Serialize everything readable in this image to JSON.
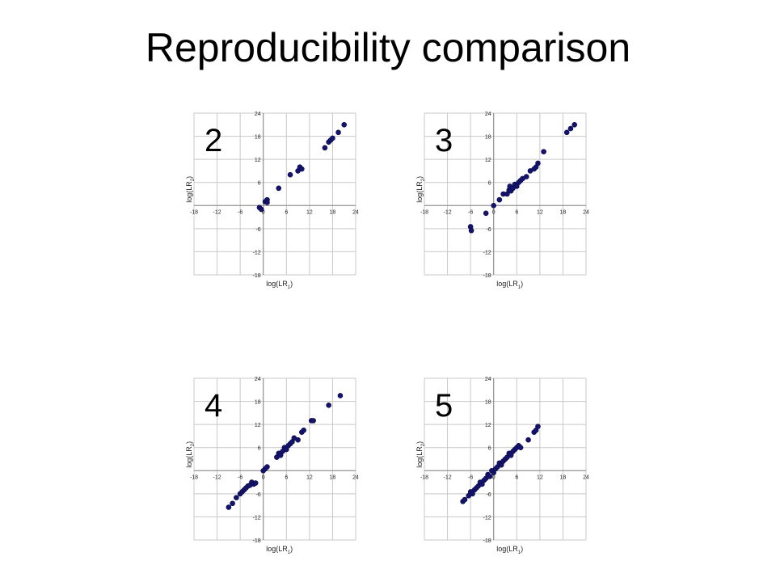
{
  "title": "Reproducibility comparison",
  "chart_data": [
    {
      "type": "scatter",
      "panel_label": "2",
      "xlabel": "log(LR1)",
      "ylabel": "log(LR2)",
      "xlim": [
        -18,
        24
      ],
      "ylim": [
        -18,
        24
      ],
      "ticks": [
        -18,
        -12,
        -6,
        0,
        6,
        12,
        18,
        24
      ],
      "grid": true,
      "point_color": "#141470",
      "points": [
        [
          -1,
          -0.5
        ],
        [
          -0.5,
          -1
        ],
        [
          0.5,
          1
        ],
        [
          1,
          1.5
        ],
        [
          1,
          0.8
        ],
        [
          4,
          4.5
        ],
        [
          7,
          8
        ],
        [
          9,
          9
        ],
        [
          9.5,
          10
        ],
        [
          10,
          9.5
        ],
        [
          16,
          15
        ],
        [
          17,
          16.5
        ],
        [
          17.5,
          17
        ],
        [
          18,
          17.5
        ],
        [
          19.5,
          19
        ],
        [
          21,
          21
        ]
      ]
    },
    {
      "type": "scatter",
      "panel_label": "3",
      "xlabel": "log(LR1)",
      "ylabel": "log(LR2)",
      "xlim": [
        -18,
        24
      ],
      "ylim": [
        -18,
        24
      ],
      "ticks": [
        -18,
        -12,
        -6,
        0,
        6,
        12,
        18,
        24
      ],
      "grid": true,
      "point_color": "#141470",
      "points": [
        [
          -6,
          -5.5
        ],
        [
          -5.8,
          -6.5
        ],
        [
          -2,
          -2
        ],
        [
          0,
          0
        ],
        [
          1.5,
          1.5
        ],
        [
          2.5,
          3
        ],
        [
          3.5,
          3
        ],
        [
          4,
          4
        ],
        [
          4.2,
          5
        ],
        [
          4.5,
          3.8
        ],
        [
          5,
          4.5
        ],
        [
          5.5,
          5.5
        ],
        [
          6,
          5
        ],
        [
          6.5,
          6
        ],
        [
          7,
          6.5
        ],
        [
          7.5,
          7
        ],
        [
          8.5,
          7.5
        ],
        [
          9.5,
          9
        ],
        [
          10.5,
          9.5
        ],
        [
          11,
          10
        ],
        [
          11.5,
          11
        ],
        [
          13,
          14
        ],
        [
          19,
          19
        ],
        [
          20,
          20
        ],
        [
          21,
          21
        ]
      ]
    },
    {
      "type": "scatter",
      "panel_label": "4",
      "xlabel": "log(LR1)",
      "ylabel": "log(LR2)",
      "xlim": [
        -18,
        24
      ],
      "ylim": [
        -18,
        24
      ],
      "ticks": [
        -18,
        -12,
        -6,
        0,
        6,
        12,
        18,
        24
      ],
      "grid": true,
      "point_color": "#141470",
      "points": [
        [
          -9,
          -9.5
        ],
        [
          -8,
          -8.5
        ],
        [
          -7,
          -7
        ],
        [
          -6,
          -6
        ],
        [
          -5.5,
          -5.5
        ],
        [
          -5,
          -5
        ],
        [
          -4.5,
          -4.5
        ],
        [
          -4,
          -4
        ],
        [
          -3.5,
          -3.8
        ],
        [
          -3,
          -3
        ],
        [
          -2.5,
          -3.5
        ],
        [
          -2,
          -3.2
        ],
        [
          0,
          0
        ],
        [
          0.5,
          0.5
        ],
        [
          1,
          1
        ],
        [
          3.5,
          3.5
        ],
        [
          4,
          4.5
        ],
        [
          4.5,
          4
        ],
        [
          5,
          5
        ],
        [
          5.5,
          6
        ],
        [
          6,
          5.5
        ],
        [
          6.5,
          6.5
        ],
        [
          7,
          7
        ],
        [
          7.5,
          7.5
        ],
        [
          8,
          8.5
        ],
        [
          9,
          8
        ],
        [
          10,
          10
        ],
        [
          10.5,
          10.5
        ],
        [
          12.5,
          13
        ],
        [
          13,
          13
        ],
        [
          17,
          17
        ],
        [
          20,
          19.5
        ]
      ]
    },
    {
      "type": "scatter",
      "panel_label": "5",
      "xlabel": "log(LR1)",
      "ylabel": "log(LR2)",
      "xlim": [
        -18,
        24
      ],
      "ylim": [
        -18,
        24
      ],
      "ticks": [
        -18,
        -12,
        -6,
        0,
        6,
        12,
        18,
        24
      ],
      "grid": true,
      "point_color": "#141470",
      "points": [
        [
          -8,
          -8
        ],
        [
          -7.5,
          -7.5
        ],
        [
          -6.5,
          -6.5
        ],
        [
          -6,
          -5.5
        ],
        [
          -5.5,
          -6
        ],
        [
          -5,
          -5
        ],
        [
          -4.5,
          -4.5
        ],
        [
          -4,
          -4
        ],
        [
          -3.5,
          -3
        ],
        [
          -3,
          -3.5
        ],
        [
          -2.5,
          -2.5
        ],
        [
          -2,
          -2
        ],
        [
          -1.5,
          -1
        ],
        [
          -1,
          -1.5
        ],
        [
          -0.5,
          0
        ],
        [
          0,
          -0.5
        ],
        [
          0.5,
          0.5
        ],
        [
          1,
          1
        ],
        [
          1.5,
          2
        ],
        [
          2,
          1.5
        ],
        [
          2.5,
          2.5
        ],
        [
          3,
          3
        ],
        [
          3.5,
          3.5
        ],
        [
          4,
          4.5
        ],
        [
          4.5,
          4
        ],
        [
          5,
          5
        ],
        [
          5.5,
          5.5
        ],
        [
          6,
          6
        ],
        [
          6.5,
          6.5
        ],
        [
          7,
          6
        ],
        [
          9,
          8
        ],
        [
          10.5,
          10
        ],
        [
          11,
          10.5
        ],
        [
          11.5,
          11.5
        ]
      ]
    }
  ]
}
